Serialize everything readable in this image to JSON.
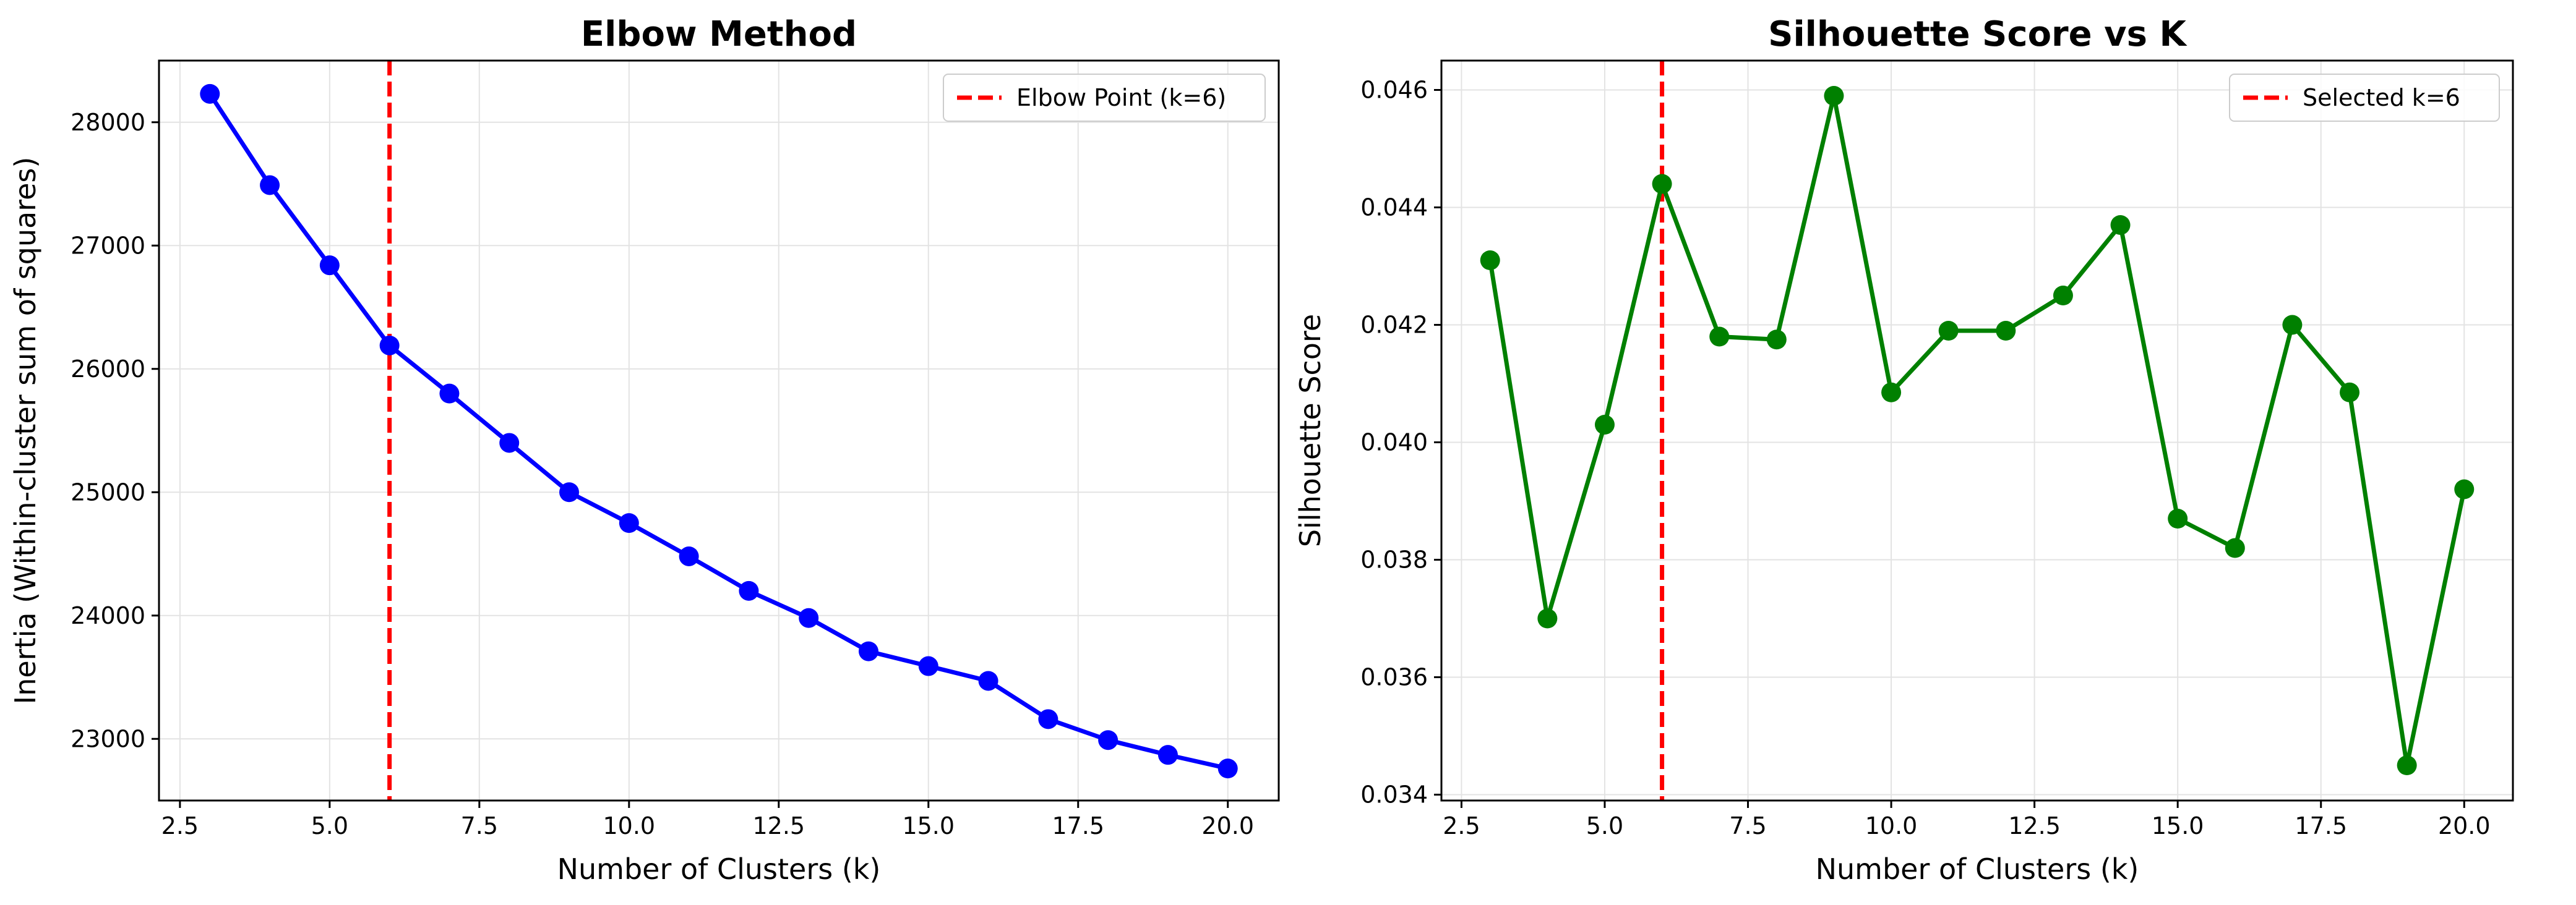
{
  "chart_data": [
    {
      "type": "line",
      "title": "Elbow Method",
      "xlabel": "Number of Clusters (k)",
      "ylabel": "Inertia (Within-cluster sum of squares)",
      "xlim": [
        2.15,
        20.85
      ],
      "ylim": [
        22500,
        28500
      ],
      "xticks": [
        2.5,
        5.0,
        7.5,
        10.0,
        12.5,
        15.0,
        17.5,
        20.0
      ],
      "xtick_labels": [
        "2.5",
        "5.0",
        "7.5",
        "10.0",
        "12.5",
        "15.0",
        "17.5",
        "20.0"
      ],
      "yticks": [
        23000,
        24000,
        25000,
        26000,
        27000,
        28000
      ],
      "ytick_labels": [
        "23000",
        "24000",
        "25000",
        "26000",
        "27000",
        "28000"
      ],
      "grid": true,
      "legend_position": "top-right",
      "series": [
        {
          "color": "#0000ff",
          "marker": "circle",
          "x": [
            3,
            4,
            5,
            6,
            7,
            8,
            9,
            10,
            11,
            12,
            13,
            14,
            15,
            16,
            17,
            18,
            19,
            20
          ],
          "values": [
            28230,
            27490,
            26840,
            26190,
            25800,
            25400,
            25000,
            24750,
            24480,
            24200,
            23980,
            23710,
            23590,
            23470,
            23160,
            22990,
            22870,
            22760
          ]
        }
      ],
      "reference_line": {
        "orientation": "vertical",
        "x": 6,
        "color": "#ff0000",
        "style": "dashed",
        "label": "Elbow Point (k=6)"
      }
    },
    {
      "type": "line",
      "title": "Silhouette Score vs K",
      "xlabel": "Number of Clusters (k)",
      "ylabel": "Silhouette Score",
      "xlim": [
        2.15,
        20.85
      ],
      "ylim": [
        0.0339,
        0.0465
      ],
      "xticks": [
        2.5,
        5.0,
        7.5,
        10.0,
        12.5,
        15.0,
        17.5,
        20.0
      ],
      "xtick_labels": [
        "2.5",
        "5.0",
        "7.5",
        "10.0",
        "12.5",
        "15.0",
        "17.5",
        "20.0"
      ],
      "yticks": [
        0.034,
        0.036,
        0.038,
        0.04,
        0.042,
        0.044,
        0.046
      ],
      "ytick_labels": [
        "0.034",
        "0.036",
        "0.038",
        "0.040",
        "0.042",
        "0.044",
        "0.046"
      ],
      "grid": true,
      "legend_position": "top-right",
      "series": [
        {
          "color": "#008000",
          "marker": "circle",
          "x": [
            3,
            4,
            5,
            6,
            7,
            8,
            9,
            10,
            11,
            12,
            13,
            14,
            15,
            16,
            17,
            18,
            19,
            20
          ],
          "values": [
            0.0431,
            0.037,
            0.0403,
            0.0444,
            0.0418,
            0.04175,
            0.0459,
            0.04085,
            0.0419,
            0.0419,
            0.0425,
            0.0437,
            0.0387,
            0.0382,
            0.042,
            0.04085,
            0.0345,
            0.0392
          ]
        }
      ],
      "reference_line": {
        "orientation": "vertical",
        "x": 6,
        "color": "#ff0000",
        "style": "dashed",
        "label": "Selected k=6"
      }
    }
  ]
}
